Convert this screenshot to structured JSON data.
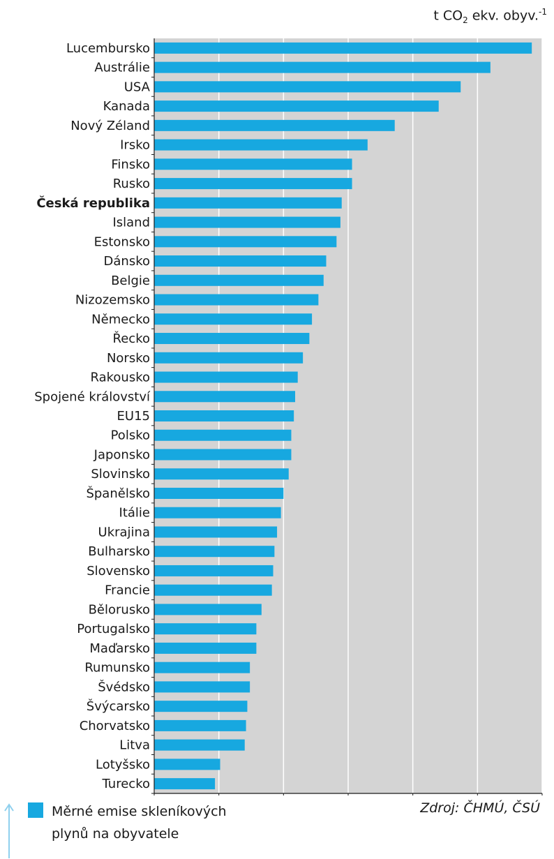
{
  "unit": {
    "prefix": "t CO",
    "sub": "2",
    "suffix": " ekv. obyv.",
    "sup": "-1"
  },
  "legend": {
    "line1": "Měrné emise skleníkových",
    "line2": "plynů na obyvatele"
  },
  "source": "Zdroj: ČHMÚ, ČSÚ",
  "colors": {
    "bar": "#17a8e0",
    "plot_bg": "#d4d4d4",
    "grid": "#ffffff",
    "arrow": "#8fd0ee"
  },
  "chart_data": {
    "type": "bar",
    "orientation": "horizontal",
    "title": "",
    "xlabel": "",
    "ylabel": "",
    "xlim": [
      0,
      30
    ],
    "xticks": [
      0,
      5,
      10,
      15,
      20,
      25,
      30
    ],
    "grid": true,
    "highlight": "Česká republika",
    "categories": [
      "Lucembursko",
      "Austrálie",
      "USA",
      "Kanada",
      "Nový Zéland",
      "Irsko",
      "Finsko",
      "Rusko",
      "Česká republika",
      "Island",
      "Estonsko",
      "Dánsko",
      "Belgie",
      "Nizozemsko",
      "Německo",
      "Řecko",
      "Norsko",
      "Rakousko",
      "Spojené království",
      "EU15",
      "Polsko",
      "Japonsko",
      "Slovinsko",
      "Španělsko",
      "Itálie",
      "Ukrajina",
      "Bulharsko",
      "Slovensko",
      "Francie",
      "Bělorusko",
      "Portugalsko",
      "Maďarsko",
      "Rumunsko",
      "Švédsko",
      "Švýcarsko",
      "Chorvatsko",
      "Litva",
      "Lotyšsko",
      "Turecko"
    ],
    "values": [
      29.2,
      26.0,
      23.7,
      22.0,
      18.6,
      16.5,
      15.3,
      15.3,
      14.5,
      14.4,
      14.1,
      13.3,
      13.1,
      12.7,
      12.2,
      12.0,
      11.5,
      11.1,
      10.9,
      10.8,
      10.6,
      10.6,
      10.4,
      10.0,
      9.8,
      9.5,
      9.3,
      9.2,
      9.1,
      8.3,
      7.9,
      7.9,
      7.4,
      7.4,
      7.2,
      7.1,
      7.0,
      5.1,
      4.7
    ]
  }
}
